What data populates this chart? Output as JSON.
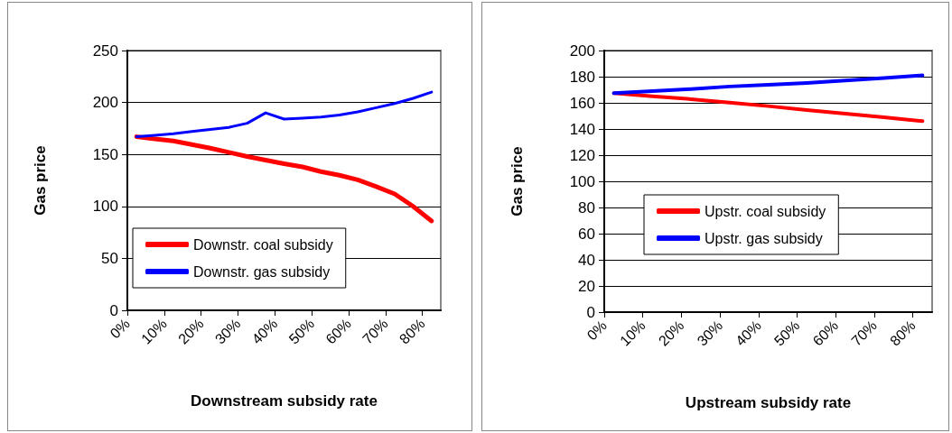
{
  "chart_data": [
    {
      "type": "line",
      "xlabel": "Downstream subsidy rate",
      "ylabel": "Gas price",
      "xlim": [
        0,
        85
      ],
      "xticks": [
        {
          "value": 0,
          "label": "0%"
        },
        {
          "value": 10,
          "label": "10%"
        },
        {
          "value": 20,
          "label": "20%"
        },
        {
          "value": 30,
          "label": "30%"
        },
        {
          "value": 40,
          "label": "40%"
        },
        {
          "value": 50,
          "label": "50%"
        },
        {
          "value": 60,
          "label": "60%"
        },
        {
          "value": 70,
          "label": "70%"
        },
        {
          "value": 80,
          "label": "80%"
        }
      ],
      "ylim": [
        0,
        250
      ],
      "yticks": [
        0,
        50,
        100,
        150,
        200,
        250
      ],
      "grid": "y",
      "legend": "bottom left",
      "x": [
        2.5,
        7.5,
        12.5,
        17.5,
        22.5,
        27.5,
        32.5,
        37.5,
        42.5,
        47.5,
        52.5,
        57.5,
        62.5,
        67.5,
        72.5,
        77.5,
        82.5
      ],
      "series": [
        {
          "name": "Downstr. coal subsidy",
          "color": "#ff0000",
          "values": [
            167,
            165,
            163,
            159.5,
            156,
            152,
            148,
            144.5,
            141,
            138,
            133.5,
            130,
            125.5,
            119,
            112,
            100,
            86
          ]
        },
        {
          "name": "Downstr. gas subsidy",
          "color": "#0000ff",
          "values": [
            167,
            168.5,
            170,
            172,
            174,
            176,
            180,
            190,
            184,
            185,
            186,
            188,
            191,
            195,
            199,
            204,
            210
          ]
        }
      ]
    },
    {
      "type": "line",
      "xlabel": "Upstream subsidy rate",
      "ylabel": "Gas price",
      "xlim": [
        0,
        85
      ],
      "xticks": [
        {
          "value": 0,
          "label": "0%"
        },
        {
          "value": 10,
          "label": "10%"
        },
        {
          "value": 20,
          "label": "20%"
        },
        {
          "value": 30,
          "label": "30%"
        },
        {
          "value": 40,
          "label": "40%"
        },
        {
          "value": 50,
          "label": "50%"
        },
        {
          "value": 60,
          "label": "60%"
        },
        {
          "value": 70,
          "label": "70%"
        },
        {
          "value": 80,
          "label": "80%"
        }
      ],
      "ylim": [
        0,
        200
      ],
      "yticks": [
        0,
        20,
        40,
        60,
        80,
        100,
        120,
        140,
        160,
        180,
        200
      ],
      "grid": "y",
      "legend": "center",
      "x": [
        2.5,
        12.5,
        22.5,
        32.5,
        42.5,
        52.5,
        62.5,
        72.5,
        82.5
      ],
      "series": [
        {
          "name": "Upstr. coal subsidy",
          "color": "#ff0000",
          "values": [
            167.4,
            165,
            162.8,
            160.2,
            157.5,
            154.5,
            151.8,
            149,
            146
          ]
        },
        {
          "name": "Upstr. gas subsidy",
          "color": "#0000ff",
          "values": [
            167.4,
            169,
            170.5,
            172.5,
            173.8,
            175.2,
            177,
            179,
            181
          ]
        }
      ]
    }
  ]
}
